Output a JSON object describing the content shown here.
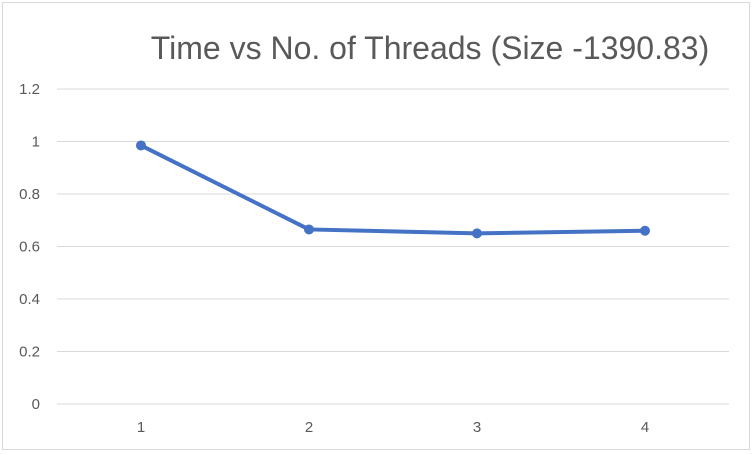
{
  "chart_data": {
    "type": "line",
    "title": "Time vs No. of Threads (Size -1390.83)",
    "xlabel": "",
    "ylabel": "",
    "categories": [
      "1",
      "2",
      "3",
      "4"
    ],
    "series": [
      {
        "values": [
          0.985,
          0.665,
          0.65,
          0.66
        ]
      }
    ],
    "ylim": [
      0,
      1.2
    ],
    "yticks": [
      "0",
      "0.2",
      "0.4",
      "0.6",
      "0.8",
      "1",
      "1.2"
    ],
    "grid": true,
    "legend": "none",
    "colors": {
      "series": "#4472c4",
      "grid": "#d9d9d9",
      "text": "#595959"
    }
  }
}
